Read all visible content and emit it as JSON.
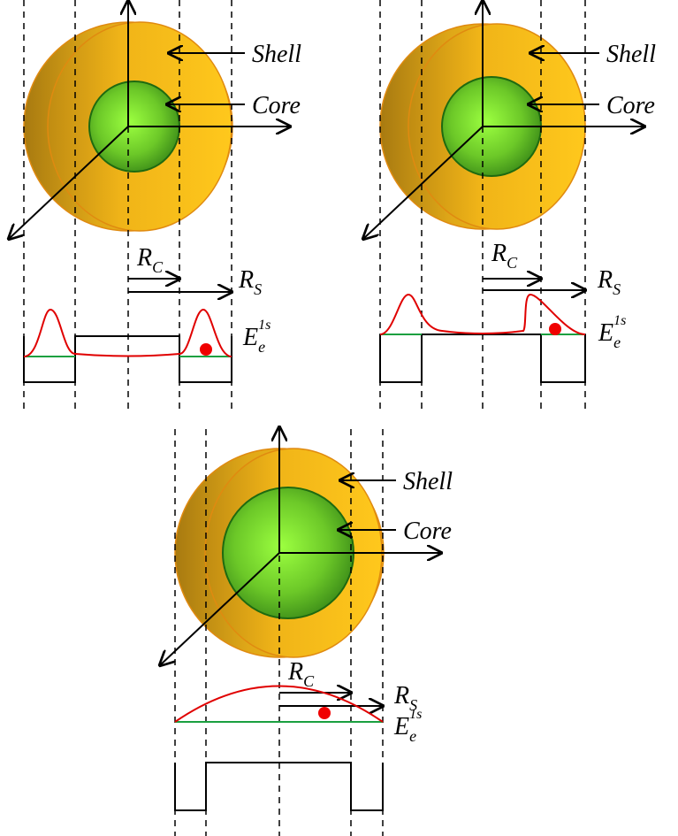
{
  "panels": [
    {
      "shell": "Shell",
      "core": "Core",
      "core_radius": {
        "symbol": "R",
        "subscript": "C"
      },
      "shell_radius": {
        "symbol": "R",
        "subscript": "S"
      },
      "energy": {
        "symbol": "E",
        "subscript": "e",
        "superscript": "1s"
      }
    },
    {
      "shell": "Shell",
      "core": "Core",
      "core_radius": {
        "symbol": "R",
        "subscript": "C"
      },
      "shell_radius": {
        "symbol": "R",
        "subscript": "S"
      },
      "energy": {
        "symbol": "E",
        "subscript": "e",
        "superscript": "1s"
      }
    },
    {
      "shell": "Shell",
      "core": "Core",
      "core_radius": {
        "symbol": "R",
        "subscript": "C"
      },
      "shell_radius": {
        "symbol": "R",
        "subscript": "S"
      },
      "energy": {
        "symbol": "E",
        "subscript": "e",
        "superscript": "1s"
      }
    }
  ]
}
